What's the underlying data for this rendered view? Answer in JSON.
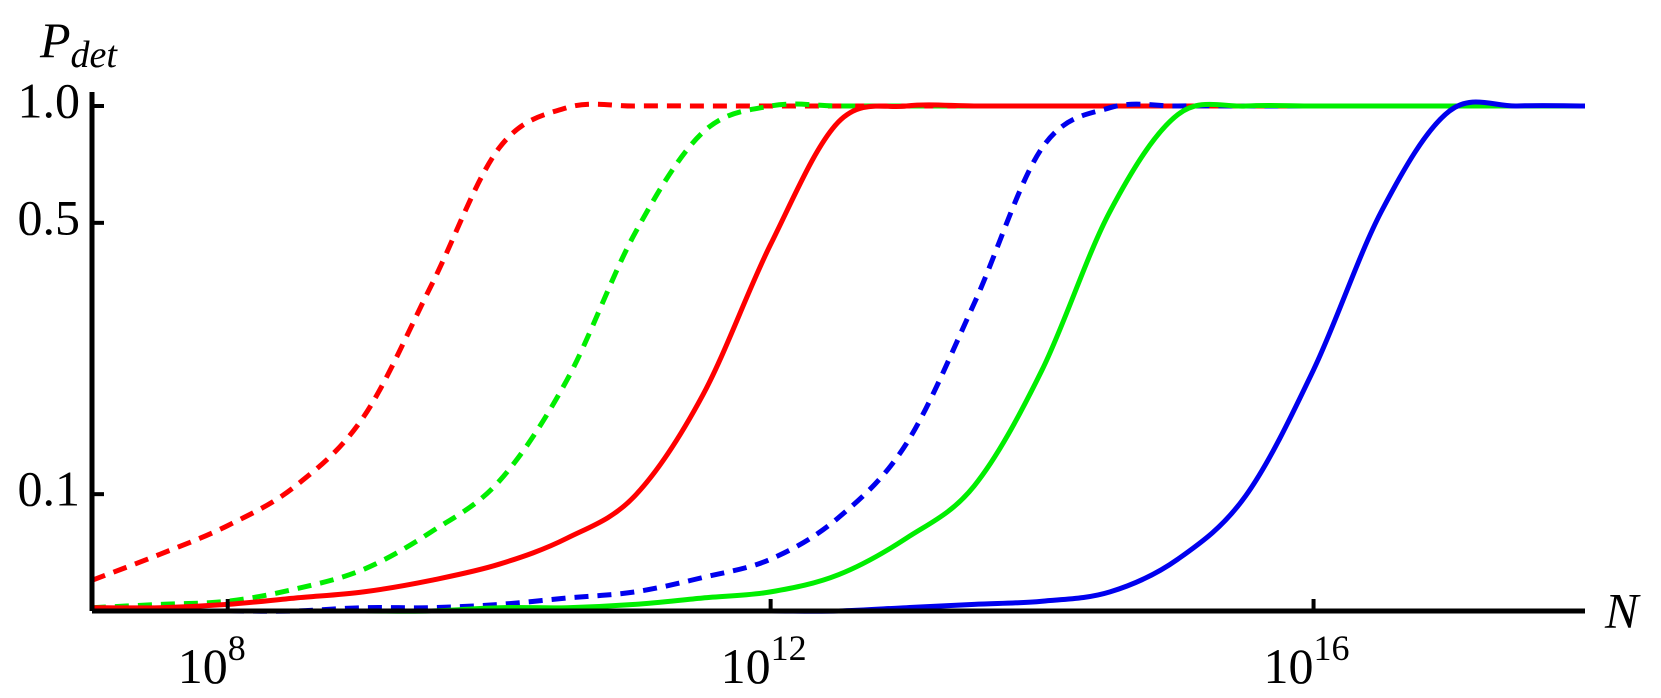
{
  "chart_data": {
    "type": "line",
    "ylabel": {
      "main": "P",
      "sub": "det"
    },
    "xlabel": "N",
    "log_x": true,
    "log_y": true,
    "x": [
      10000000.0,
      31622777.0,
      100000000.0,
      316227770.0,
      1000000000.0,
      3162277700.0,
      10000000000.0,
      31622777000.0,
      100000000000.0,
      316227770000.0,
      1000000000000.0,
      3162277700000.0,
      10000000000000.0,
      31622777000000.0,
      100000000000000.0,
      316227770000000.0,
      1000000000000000.0,
      3162277700000000.0,
      1e+16,
      3.1622777e+16,
      1e+17,
      3.1622777e+17,
      1e+18
    ],
    "series": [
      {
        "color": "#ff0000",
        "dashed": true,
        "values": [
          0.06,
          0.07,
          0.083,
          0.105,
          0.158,
          0.345,
          0.78,
          0.99,
          1,
          1,
          1,
          1,
          1,
          1,
          1,
          1,
          1,
          1,
          1,
          1,
          1,
          1,
          1
        ]
      },
      {
        "color": "#00ee00",
        "dashed": true,
        "values": [
          0.051,
          0.052,
          0.053,
          0.057,
          0.064,
          0.08,
          0.108,
          0.197,
          0.47,
          0.855,
          1,
          1,
          1,
          1,
          1,
          1,
          1,
          1,
          1,
          1,
          1,
          1,
          1
        ]
      },
      {
        "color": "#ff0000",
        "dashed": false,
        "values": [
          0.051,
          0.051,
          0.052,
          0.054,
          0.056,
          0.06,
          0.066,
          0.077,
          0.099,
          0.18,
          0.44,
          0.91,
          1,
          1,
          1,
          1,
          1,
          1,
          1,
          1,
          1,
          1,
          1
        ]
      },
      {
        "color": "#0000ee",
        "dashed": true,
        "values": [
          0.05,
          0.05,
          0.05,
          0.05,
          0.051,
          0.051,
          0.052,
          0.054,
          0.056,
          0.061,
          0.068,
          0.087,
          0.135,
          0.31,
          0.78,
          0.99,
          1,
          1,
          1,
          1,
          1,
          1,
          1
        ]
      },
      {
        "color": "#00ee00",
        "dashed": false,
        "values": [
          0.05,
          0.05,
          0.05,
          0.05,
          0.05,
          0.05,
          0.051,
          0.051,
          0.052,
          0.054,
          0.056,
          0.062,
          0.077,
          0.105,
          0.209,
          0.535,
          0.95,
          1,
          1,
          1,
          1,
          1,
          1
        ]
      },
      {
        "color": "#0000ee",
        "dashed": false,
        "values": [
          0.05,
          0.05,
          0.05,
          0.05,
          0.05,
          0.05,
          0.05,
          0.05,
          0.05,
          0.05,
          0.05,
          0.05,
          0.051,
          0.052,
          0.053,
          0.056,
          0.068,
          0.099,
          0.209,
          0.535,
          0.97,
          1,
          1
        ]
      }
    ],
    "xlim": [
      10000000.0,
      1e+18
    ],
    "ylim": [
      0.05,
      1
    ],
    "xticks": [
      {
        "value": 100000000.0,
        "label": "10",
        "power": "8"
      },
      {
        "value": 1000000000000.0,
        "label": "10",
        "power": "12"
      },
      {
        "value": 1e+16,
        "label": "10",
        "power": "16"
      }
    ],
    "yticks": [
      0.1,
      0.5,
      {
        "value": 1,
        "label": "1.0"
      }
    ]
  }
}
